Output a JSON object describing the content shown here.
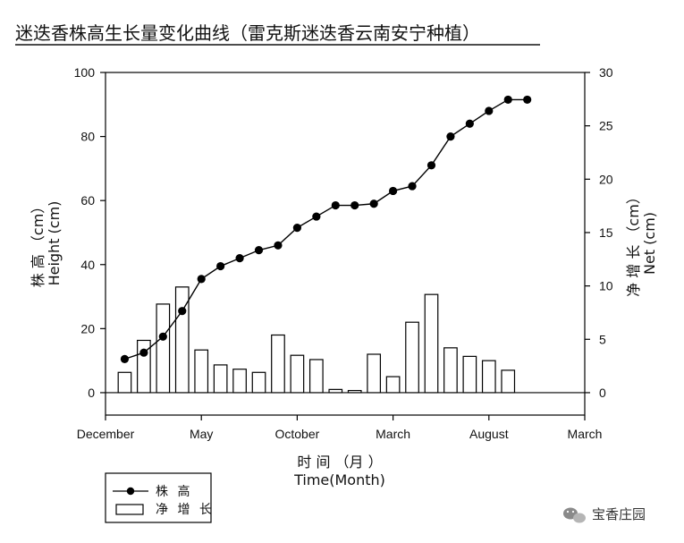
{
  "chart_data": {
    "type": "bar+line",
    "title": "迷迭香株高生长量变化曲线（雷克斯迷迭香云南安宁种植）",
    "xlabel_cn": "时 间 （月 ）",
    "xlabel_en": "Time(Month)",
    "ylabel_left_cn": "株 高 （cm）",
    "ylabel_left_en": "Height (cm)",
    "ylabel_right_cn": "净 增 长 （cm）",
    "ylabel_right_en": "Net (cm)",
    "x_tick_labels": [
      "December",
      "May",
      "October",
      "March",
      "August",
      "March"
    ],
    "y_left_ticks": [
      "0",
      "20",
      "40",
      "60",
      "80",
      "100"
    ],
    "y_right_ticks": [
      "0",
      "5",
      "10",
      "15",
      "20",
      "25",
      "30"
    ],
    "ylim_left": [
      -7,
      100
    ],
    "ylim_right": [
      -2.1,
      30
    ],
    "x_range": [
      0,
      25
    ],
    "legend": {
      "line_label": "株 高",
      "bar_label": "净 增 长"
    },
    "series": [
      {
        "name": "株 高",
        "kind": "line",
        "axis": "left",
        "x": [
          1,
          2,
          3,
          4,
          5,
          6,
          7,
          8,
          9,
          10,
          11,
          12,
          13,
          14,
          15,
          16,
          17,
          18,
          19,
          20,
          21,
          22
        ],
        "values": [
          10.5,
          12.5,
          17.5,
          25.5,
          35.5,
          39.5,
          42,
          44.5,
          46,
          51.5,
          55,
          58.5,
          58.5,
          59,
          63,
          64.5,
          71,
          80,
          84,
          88,
          91.5,
          91.5
        ]
      },
      {
        "name": "净 增 长",
        "kind": "bar",
        "axis": "right",
        "x": [
          1,
          2,
          3,
          4,
          5,
          6,
          7,
          8,
          9,
          10,
          11,
          12,
          13,
          14,
          15,
          16,
          17,
          18,
          19,
          20,
          21
        ],
        "values": [
          1.9,
          4.9,
          8.3,
          9.9,
          4.0,
          2.6,
          2.2,
          1.9,
          5.4,
          3.5,
          3.1,
          0.3,
          0.2,
          3.6,
          1.5,
          6.6,
          9.2,
          4.2,
          3.4,
          3.0,
          2.1
        ]
      }
    ]
  },
  "watermark": {
    "text": "宝香庄园",
    "icon": "wechat-icon"
  },
  "colors": {
    "line": "#000000",
    "bar_fill": "#ffffff",
    "bar_stroke": "#000000"
  }
}
